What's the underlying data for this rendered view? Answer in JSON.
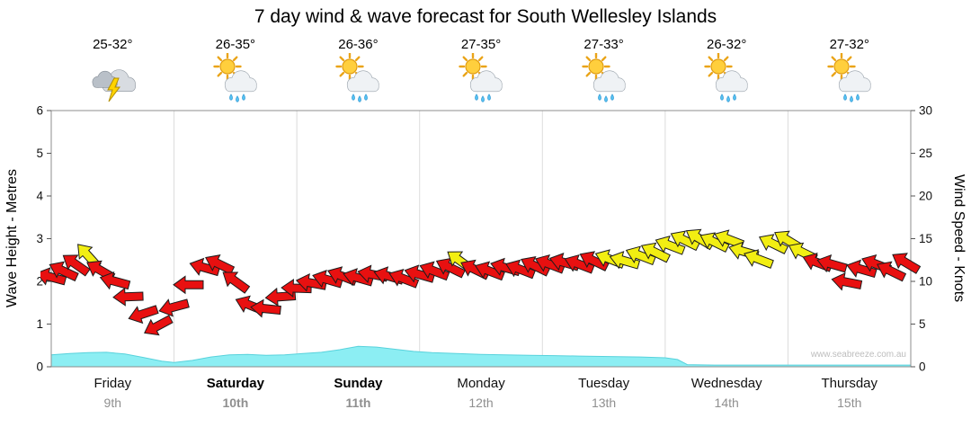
{
  "title": "7 day wind & wave forecast for South Wellesley Islands",
  "watermark": "www.seabreeze.com.au",
  "days": [
    {
      "name": "Friday",
      "date": "9th",
      "temp": "25-32°",
      "icon": "storm",
      "bold": false
    },
    {
      "name": "Saturday",
      "date": "10th",
      "temp": "26-35°",
      "icon": "sun-cloud-rain",
      "bold": true
    },
    {
      "name": "Sunday",
      "date": "11th",
      "temp": "26-36°",
      "icon": "sun-cloud-rain",
      "bold": true
    },
    {
      "name": "Monday",
      "date": "12th",
      "temp": "27-35°",
      "icon": "sun-cloud-rain",
      "bold": false
    },
    {
      "name": "Tuesday",
      "date": "13th",
      "temp": "27-33°",
      "icon": "sun-cloud-rain",
      "bold": false
    },
    {
      "name": "Wednesday",
      "date": "14th",
      "temp": "26-32°",
      "icon": "sun-cloud-rain",
      "bold": false
    },
    {
      "name": "Thursday",
      "date": "15th",
      "temp": "27-32°",
      "icon": "sun-cloud-rain",
      "bold": false
    }
  ],
  "chart_data": {
    "type": "line",
    "title": "7 day wind & wave forecast for South Wellesley Islands",
    "x_axis": {
      "days": 7,
      "labels": [
        "Friday",
        "Saturday",
        "Sunday",
        "Monday",
        "Tuesday",
        "Wednesday",
        "Thursday"
      ],
      "grid": true
    },
    "left_axis": {
      "label": "Wave Height - Metres",
      "min": 0,
      "max": 6,
      "ticks": [
        0,
        1,
        2,
        3,
        4,
        5,
        6
      ]
    },
    "right_axis": {
      "label": "Wind Speed - Knots",
      "min": 0,
      "max": 30,
      "ticks": [
        0,
        5,
        10,
        15,
        20,
        25,
        30
      ]
    },
    "colors": {
      "wind_moderate": "#e81010",
      "wind_strong": "#f2ee12",
      "wave_fill": "#8ceef3",
      "wave_stroke": "#58d2dc"
    },
    "series": [
      {
        "name": "Wind Speed",
        "style": "wind-arrows",
        "units": "knots",
        "point_format": [
          "t_days",
          "knots",
          "direction_deg",
          "color_key"
        ],
        "points": [
          [
            0.0,
            10.5,
            195,
            "r"
          ],
          [
            0.1,
            11.2,
            205,
            "r"
          ],
          [
            0.2,
            12.0,
            215,
            "r"
          ],
          [
            0.3,
            13.0,
            228,
            "y"
          ],
          [
            0.4,
            11.3,
            210,
            "r"
          ],
          [
            0.52,
            10.0,
            195,
            "r"
          ],
          [
            0.63,
            8.2,
            178,
            "r"
          ],
          [
            0.75,
            6.2,
            162,
            "r"
          ],
          [
            0.87,
            4.8,
            152,
            "r"
          ],
          [
            1.0,
            7.0,
            165,
            "r"
          ],
          [
            1.12,
            9.6,
            180,
            "r"
          ],
          [
            1.25,
            11.6,
            196,
            "r"
          ],
          [
            1.37,
            12.0,
            206,
            "r"
          ],
          [
            1.5,
            10.0,
            216,
            "r"
          ],
          [
            1.62,
            7.2,
            202,
            "r"
          ],
          [
            1.75,
            6.8,
            186,
            "r"
          ],
          [
            1.87,
            8.2,
            176,
            "r"
          ],
          [
            2.0,
            9.2,
            182,
            "r"
          ],
          [
            2.12,
            9.8,
            190,
            "r"
          ],
          [
            2.25,
            10.2,
            196,
            "r"
          ],
          [
            2.37,
            10.6,
            201,
            "r"
          ],
          [
            2.5,
            10.4,
            196,
            "r"
          ],
          [
            2.62,
            10.8,
            191,
            "r"
          ],
          [
            2.75,
            10.6,
            196,
            "r"
          ],
          [
            2.87,
            10.3,
            201,
            "r"
          ],
          [
            3.0,
            10.8,
            196,
            "r"
          ],
          [
            3.12,
            11.2,
            201,
            "r"
          ],
          [
            3.25,
            11.6,
            206,
            "r"
          ],
          [
            3.33,
            12.4,
            216,
            "y"
          ],
          [
            3.45,
            11.4,
            206,
            "r"
          ],
          [
            3.57,
            11.2,
            201,
            "r"
          ],
          [
            3.7,
            11.6,
            196,
            "r"
          ],
          [
            3.82,
            11.4,
            201,
            "r"
          ],
          [
            3.94,
            11.8,
            206,
            "r"
          ],
          [
            4.06,
            12.0,
            201,
            "r"
          ],
          [
            4.18,
            12.2,
            196,
            "r"
          ],
          [
            4.3,
            12.0,
            201,
            "r"
          ],
          [
            4.42,
            12.4,
            206,
            "r"
          ],
          [
            4.55,
            12.6,
            201,
            "y"
          ],
          [
            4.67,
            12.4,
            196,
            "y"
          ],
          [
            4.8,
            13.0,
            201,
            "y"
          ],
          [
            4.92,
            13.4,
            206,
            "y"
          ],
          [
            5.04,
            14.2,
            201,
            "y"
          ],
          [
            5.16,
            14.8,
            206,
            "y"
          ],
          [
            5.28,
            15.0,
            211,
            "y"
          ],
          [
            5.4,
            14.6,
            206,
            "y"
          ],
          [
            5.52,
            14.9,
            201,
            "y"
          ],
          [
            5.64,
            13.5,
            196,
            "y"
          ],
          [
            5.76,
            12.6,
            201,
            "y"
          ],
          [
            5.88,
            14.4,
            206,
            "y"
          ],
          [
            6.0,
            14.8,
            211,
            "y"
          ],
          [
            6.12,
            13.4,
            206,
            "y"
          ],
          [
            6.24,
            12.2,
            201,
            "r"
          ],
          [
            6.36,
            12.0,
            196,
            "r"
          ],
          [
            6.48,
            9.9,
            191,
            "r"
          ],
          [
            6.6,
            11.4,
            196,
            "r"
          ],
          [
            6.72,
            12.0,
            201,
            "r"
          ],
          [
            6.84,
            11.2,
            206,
            "r"
          ],
          [
            6.96,
            12.2,
            211,
            "r"
          ]
        ]
      },
      {
        "name": "Wave Height",
        "style": "area",
        "units": "m",
        "color": "#8ceef3",
        "stroke": "#58d2dc",
        "point_format": [
          "t_days",
          "metres"
        ],
        "points": [
          [
            0.0,
            0.28
          ],
          [
            0.15,
            0.31
          ],
          [
            0.3,
            0.33
          ],
          [
            0.45,
            0.34
          ],
          [
            0.6,
            0.3
          ],
          [
            0.75,
            0.22
          ],
          [
            0.9,
            0.13
          ],
          [
            1.0,
            0.1
          ],
          [
            1.15,
            0.15
          ],
          [
            1.3,
            0.23
          ],
          [
            1.45,
            0.28
          ],
          [
            1.6,
            0.29
          ],
          [
            1.75,
            0.27
          ],
          [
            1.9,
            0.28
          ],
          [
            2.05,
            0.31
          ],
          [
            2.2,
            0.34
          ],
          [
            2.35,
            0.4
          ],
          [
            2.5,
            0.48
          ],
          [
            2.65,
            0.46
          ],
          [
            2.8,
            0.41
          ],
          [
            2.95,
            0.36
          ],
          [
            3.1,
            0.33
          ],
          [
            3.3,
            0.31
          ],
          [
            3.5,
            0.29
          ],
          [
            3.7,
            0.28
          ],
          [
            3.9,
            0.27
          ],
          [
            4.1,
            0.26
          ],
          [
            4.3,
            0.25
          ],
          [
            4.55,
            0.24
          ],
          [
            4.8,
            0.23
          ],
          [
            5.0,
            0.21
          ],
          [
            5.1,
            0.17
          ],
          [
            5.18,
            0.05
          ],
          [
            5.4,
            0.04
          ],
          [
            5.8,
            0.04
          ],
          [
            6.2,
            0.04
          ],
          [
            6.6,
            0.04
          ],
          [
            7.0,
            0.04
          ]
        ]
      }
    ]
  }
}
